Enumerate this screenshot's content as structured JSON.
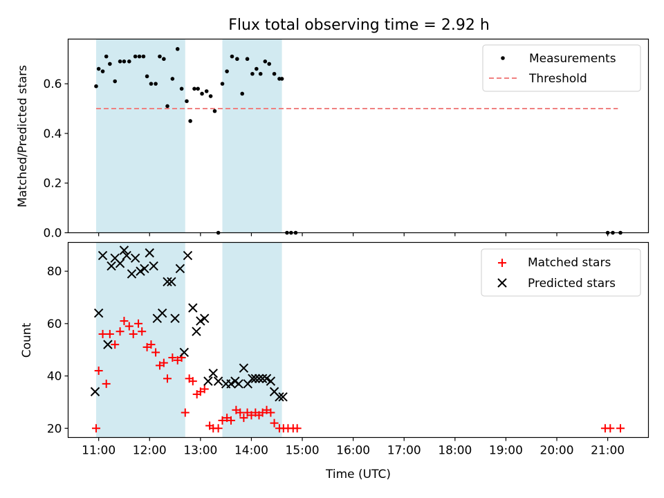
{
  "title": "Flux total observing time = 2.92 h",
  "xlabel": "Time (UTC)",
  "x_tick_labels": [
    "11:00",
    "12:00",
    "13:00",
    "14:00",
    "15:00",
    "16:00",
    "17:00",
    "18:00",
    "19:00",
    "20:00",
    "21:00"
  ],
  "colors": {
    "shade": "#add8e6",
    "threshold": "#f08080",
    "matched": "#ff0000",
    "predicted": "#000000",
    "measurement": "#000000"
  },
  "chart_data": [
    {
      "type": "scatter",
      "ylabel": "Matched/Predicted stars",
      "ylim": [
        0,
        0.78
      ],
      "y_ticks": [
        "0.0",
        "0.2",
        "0.4",
        "0.6"
      ],
      "y_tick_values": [
        0,
        0.2,
        0.4,
        0.6
      ],
      "x_unit": "hours UTC",
      "xlim": [
        10.4,
        21.8
      ],
      "legend": [
        "Measurements",
        "Threshold"
      ],
      "legend_position": "top-right",
      "shaded_intervals": [
        [
          10.95,
          12.7
        ],
        [
          13.43,
          14.6
        ]
      ],
      "threshold": {
        "y": 0.5,
        "x_range": [
          10.95,
          21.2
        ],
        "style": "dashed"
      },
      "series": [
        {
          "name": "Measurements",
          "marker": "dot",
          "points": [
            [
              10.95,
              0.59
            ],
            [
              11.0,
              0.66
            ],
            [
              11.08,
              0.65
            ],
            [
              11.15,
              0.71
            ],
            [
              11.22,
              0.68
            ],
            [
              11.32,
              0.61
            ],
            [
              11.42,
              0.69
            ],
            [
              11.5,
              0.69
            ],
            [
              11.6,
              0.69
            ],
            [
              11.72,
              0.71
            ],
            [
              11.8,
              0.71
            ],
            [
              11.88,
              0.71
            ],
            [
              11.95,
              0.63
            ],
            [
              12.03,
              0.6
            ],
            [
              12.12,
              0.6
            ],
            [
              12.2,
              0.71
            ],
            [
              12.28,
              0.7
            ],
            [
              12.35,
              0.51
            ],
            [
              12.45,
              0.62
            ],
            [
              12.55,
              0.74
            ],
            [
              12.63,
              0.58
            ],
            [
              12.73,
              0.53
            ],
            [
              12.8,
              0.45
            ],
            [
              12.88,
              0.58
            ],
            [
              12.95,
              0.58
            ],
            [
              13.03,
              0.56
            ],
            [
              13.12,
              0.57
            ],
            [
              13.2,
              0.55
            ],
            [
              13.28,
              0.49
            ],
            [
              13.35,
              0.0
            ],
            [
              13.43,
              0.6
            ],
            [
              13.52,
              0.65
            ],
            [
              13.62,
              0.71
            ],
            [
              13.72,
              0.7
            ],
            [
              13.82,
              0.56
            ],
            [
              13.92,
              0.7
            ],
            [
              14.02,
              0.64
            ],
            [
              14.1,
              0.66
            ],
            [
              14.18,
              0.64
            ],
            [
              14.27,
              0.69
            ],
            [
              14.35,
              0.68
            ],
            [
              14.45,
              0.64
            ],
            [
              14.55,
              0.62
            ],
            [
              14.6,
              0.62
            ],
            [
              14.7,
              0.0
            ],
            [
              14.78,
              0.0
            ],
            [
              14.87,
              0.0
            ],
            [
              21.0,
              0.0
            ],
            [
              21.1,
              0.0
            ],
            [
              21.25,
              0.0
            ]
          ]
        }
      ]
    },
    {
      "type": "scatter",
      "ylabel": "Count",
      "ylim": [
        16.5,
        91
      ],
      "y_ticks": [
        "20",
        "40",
        "60",
        "80"
      ],
      "y_tick_values": [
        20,
        40,
        60,
        80
      ],
      "x_unit": "hours UTC",
      "xlim": [
        10.4,
        21.8
      ],
      "legend": [
        "Matched stars",
        "Predicted stars"
      ],
      "legend_position": "top-right",
      "shaded_intervals": [
        [
          10.95,
          12.7
        ],
        [
          13.43,
          14.6
        ]
      ],
      "series": [
        {
          "name": "Matched stars",
          "marker": "plus",
          "points": [
            [
              10.95,
              20
            ],
            [
              11.0,
              42
            ],
            [
              11.08,
              56
            ],
            [
              11.15,
              37
            ],
            [
              11.22,
              56
            ],
            [
              11.32,
              52
            ],
            [
              11.42,
              57
            ],
            [
              11.5,
              61
            ],
            [
              11.6,
              59
            ],
            [
              11.68,
              56
            ],
            [
              11.78,
              60
            ],
            [
              11.85,
              57
            ],
            [
              11.95,
              51
            ],
            [
              12.03,
              52
            ],
            [
              12.12,
              49
            ],
            [
              12.2,
              44
            ],
            [
              12.28,
              45
            ],
            [
              12.35,
              39
            ],
            [
              12.45,
              47
            ],
            [
              12.55,
              46
            ],
            [
              12.63,
              47
            ],
            [
              12.7,
              26
            ],
            [
              12.78,
              39
            ],
            [
              12.85,
              38
            ],
            [
              12.93,
              33
            ],
            [
              13.0,
              34
            ],
            [
              13.08,
              35
            ],
            [
              13.18,
              21
            ],
            [
              13.25,
              20
            ],
            [
              13.35,
              20
            ],
            [
              13.43,
              23
            ],
            [
              13.52,
              24
            ],
            [
              13.6,
              23
            ],
            [
              13.7,
              27
            ],
            [
              13.78,
              26
            ],
            [
              13.85,
              24
            ],
            [
              13.92,
              26
            ],
            [
              14.0,
              25
            ],
            [
              14.08,
              26
            ],
            [
              14.15,
              25
            ],
            [
              14.22,
              26
            ],
            [
              14.3,
              27
            ],
            [
              14.38,
              26
            ],
            [
              14.45,
              22
            ],
            [
              14.55,
              20
            ],
            [
              14.63,
              20
            ],
            [
              14.72,
              20
            ],
            [
              14.82,
              20
            ],
            [
              14.9,
              20
            ],
            [
              20.95,
              20
            ],
            [
              21.05,
              20
            ],
            [
              21.25,
              20
            ]
          ]
        },
        {
          "name": "Predicted stars",
          "marker": "x",
          "points": [
            [
              10.93,
              34
            ],
            [
              11.0,
              64
            ],
            [
              11.08,
              86
            ],
            [
              11.18,
              52
            ],
            [
              11.25,
              82
            ],
            [
              11.32,
              85
            ],
            [
              11.42,
              83
            ],
            [
              11.5,
              88
            ],
            [
              11.55,
              86
            ],
            [
              11.65,
              79
            ],
            [
              11.72,
              85
            ],
            [
              11.82,
              80
            ],
            [
              11.9,
              81
            ],
            [
              12.0,
              87
            ],
            [
              12.08,
              82
            ],
            [
              12.15,
              62
            ],
            [
              12.25,
              64
            ],
            [
              12.35,
              76
            ],
            [
              12.43,
              76
            ],
            [
              12.5,
              62
            ],
            [
              12.6,
              81
            ],
            [
              12.68,
              49
            ],
            [
              12.75,
              86
            ],
            [
              12.85,
              66
            ],
            [
              12.92,
              57
            ],
            [
              13.0,
              61
            ],
            [
              13.08,
              62
            ],
            [
              13.15,
              38
            ],
            [
              13.25,
              41
            ],
            [
              13.35,
              38
            ],
            [
              13.5,
              37
            ],
            [
              13.6,
              37
            ],
            [
              13.68,
              38
            ],
            [
              13.75,
              37
            ],
            [
              13.85,
              43
            ],
            [
              13.93,
              37
            ],
            [
              14.02,
              39
            ],
            [
              14.08,
              39
            ],
            [
              14.15,
              39
            ],
            [
              14.22,
              39
            ],
            [
              14.3,
              39
            ],
            [
              14.38,
              38
            ],
            [
              14.45,
              34
            ],
            [
              14.55,
              32
            ],
            [
              14.62,
              32
            ]
          ]
        }
      ]
    }
  ]
}
